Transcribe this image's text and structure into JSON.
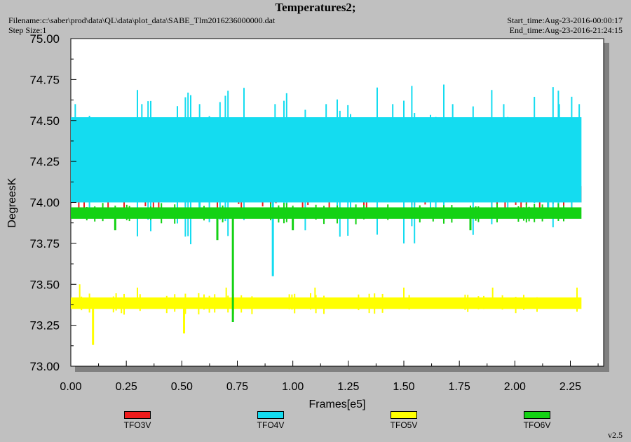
{
  "header": {
    "title": "Temperatures2;",
    "filename": "Filename:c:\\saber\\prod\\data\\QL\\data\\plot_data\\SABE_Tlm2016236000000.dat",
    "step_size": "Step Size:1",
    "start_time": "Start_time:Aug-23-2016-00:00:17",
    "end_time": "End_time:Aug-23-2016-21:24:15"
  },
  "footer": {
    "version": "v2.5"
  },
  "chart_data": {
    "type": "line",
    "title": "Temperatures2;",
    "xlabel": "Frames[e5]",
    "ylabel": "DegreesK",
    "xlim": [
      0,
      2.4
    ],
    "ylim": [
      73.0,
      75.0
    ],
    "x_ticks": [
      "0.00",
      "0.25",
      "0.50",
      "0.75",
      "1.00",
      "1.25",
      "1.50",
      "1.75",
      "2.00",
      "2.25"
    ],
    "y_ticks": [
      "73.00",
      "73.25",
      "73.50",
      "73.75",
      "74.00",
      "74.25",
      "74.50",
      "74.75",
      "75.00"
    ],
    "grid": false,
    "legend_position": "bottom",
    "x_range": [
      0.0,
      2.3
    ],
    "series": [
      {
        "name": "TFO3V",
        "color": "#ee1c1c",
        "base": 74.05,
        "bands": [
          [
            74.0,
            74.1
          ]
        ],
        "spikes": [
          [
            0.09,
            74.25
          ],
          [
            0.14,
            74.25
          ],
          [
            0.42,
            74.2
          ],
          [
            0.8,
            74.2
          ],
          [
            0.96,
            74.25
          ],
          [
            1.29,
            74.25
          ],
          [
            1.47,
            74.25
          ],
          [
            1.65,
            74.15
          ],
          [
            2.03,
            74.25
          ],
          [
            2.29,
            74.18
          ]
        ],
        "dips": []
      },
      {
        "name": "TFO4V",
        "color": "#14dcf0",
        "base": 74.25,
        "bands": [
          [
            74.0,
            74.52
          ]
        ],
        "spikes": [
          [
            0.02,
            74.6
          ],
          [
            0.32,
            74.6
          ],
          [
            0.58,
            74.6
          ],
          [
            0.92,
            74.6
          ],
          [
            1.15,
            74.6
          ],
          [
            1.45,
            74.6
          ],
          [
            1.72,
            74.6
          ],
          [
            1.95,
            74.6
          ],
          [
            2.2,
            74.6
          ],
          [
            2.29,
            74.6
          ]
        ],
        "dips": [
          [
            0.91,
            73.55
          ],
          [
            0.58,
            73.95
          ],
          [
            2.15,
            73.95
          ]
        ]
      },
      {
        "name": "TFO5V",
        "color": "#ffff00",
        "base": 73.4,
        "bands": [
          [
            73.35,
            73.42
          ]
        ],
        "spikes": [
          [
            0.04,
            73.5
          ],
          [
            0.3,
            73.48
          ],
          [
            0.7,
            73.48
          ],
          [
            1.1,
            73.48
          ],
          [
            1.5,
            73.48
          ],
          [
            1.9,
            73.48
          ],
          [
            2.28,
            73.48
          ]
        ],
        "dips": [
          [
            0.1,
            73.13
          ],
          [
            0.51,
            73.2
          ],
          [
            0.74,
            73.35
          ]
        ]
      },
      {
        "name": "TFO6V",
        "color": "#14d214",
        "base": 73.93,
        "bands": [
          [
            73.9,
            73.97
          ]
        ],
        "spikes": [
          [
            0.2,
            73.98
          ],
          [
            1.0,
            73.98
          ],
          [
            1.8,
            73.98
          ]
        ],
        "dips": [
          [
            0.73,
            73.27
          ],
          [
            0.66,
            73.77
          ],
          [
            0.2,
            73.83
          ],
          [
            1.0,
            73.83
          ],
          [
            1.8,
            73.83
          ]
        ]
      }
    ]
  }
}
